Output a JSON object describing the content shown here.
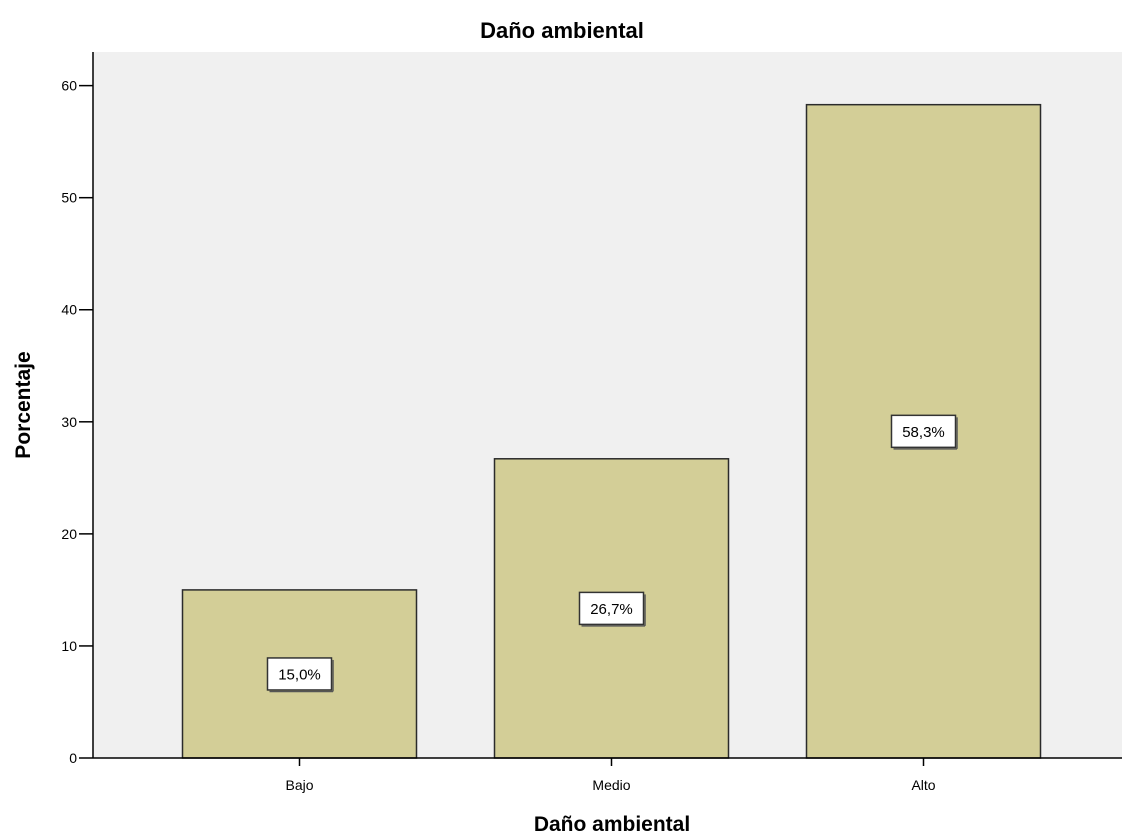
{
  "colors": {
    "plot_background": "#f0f0f0",
    "bar_fill": "#d3ce97",
    "bar_stroke": "#2b2b2b",
    "axis": "#000000",
    "label_box_fill": "#ffffff"
  },
  "chart_data": {
    "type": "bar",
    "title": "Daño ambiental",
    "xlabel": "Daño ambiental",
    "ylabel": "Porcentaje",
    "categories": [
      "Bajo",
      "Medio",
      "Alto"
    ],
    "values": [
      15.0,
      26.7,
      58.3
    ],
    "data_labels": [
      "15,0%",
      "26,7%",
      "58,3%"
    ],
    "ylim": [
      0,
      63
    ],
    "yticks": [
      0,
      10,
      20,
      30,
      40,
      50,
      60
    ],
    "grid": false,
    "legend": "none"
  }
}
